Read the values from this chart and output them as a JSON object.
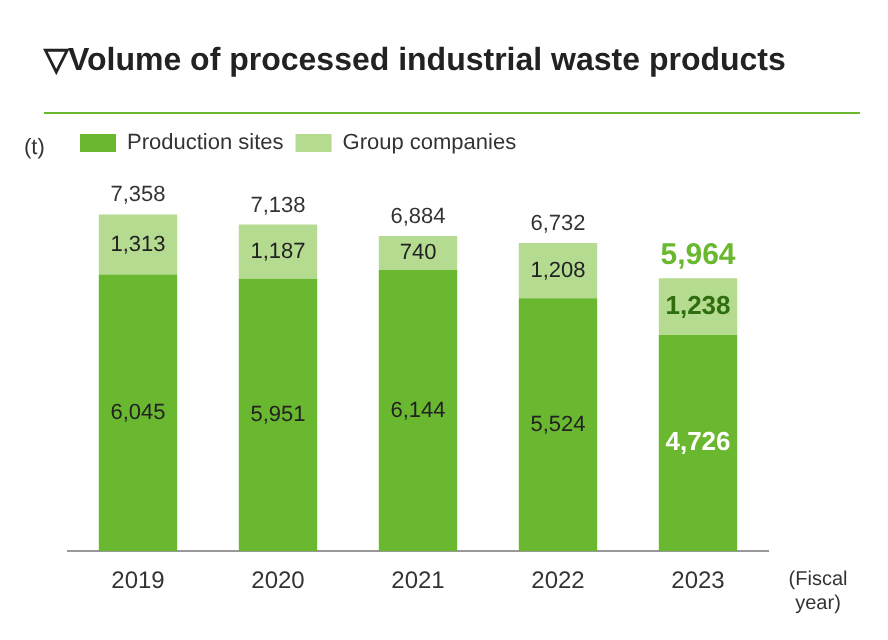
{
  "chart_data": {
    "type": "bar",
    "title": "▽Volume of processed industrial waste products",
    "ylabel": "(t)",
    "xlabel": "(Fiscal year)",
    "categories": [
      "2019",
      "2020",
      "2021",
      "2022",
      "2023"
    ],
    "stacked": true,
    "legend": "top left",
    "series": [
      {
        "name": "Production sites",
        "color": "#6ab82f",
        "values": [
          6045,
          5951,
          6144,
          5524,
          4726
        ],
        "value_labels": [
          "6,045",
          "5,951",
          "6,144",
          "5,524",
          "4,726"
        ]
      },
      {
        "name": "Group companies",
        "color": "#b5db91",
        "values": [
          1313,
          1187,
          740,
          1208,
          1238
        ],
        "value_labels": [
          "1,313",
          "1,187",
          "740",
          "1,208",
          "1,238"
        ]
      }
    ],
    "totals": [
      "7,358",
      "7,138",
      "6,884",
      "6,732",
      "5,964"
    ]
  }
}
